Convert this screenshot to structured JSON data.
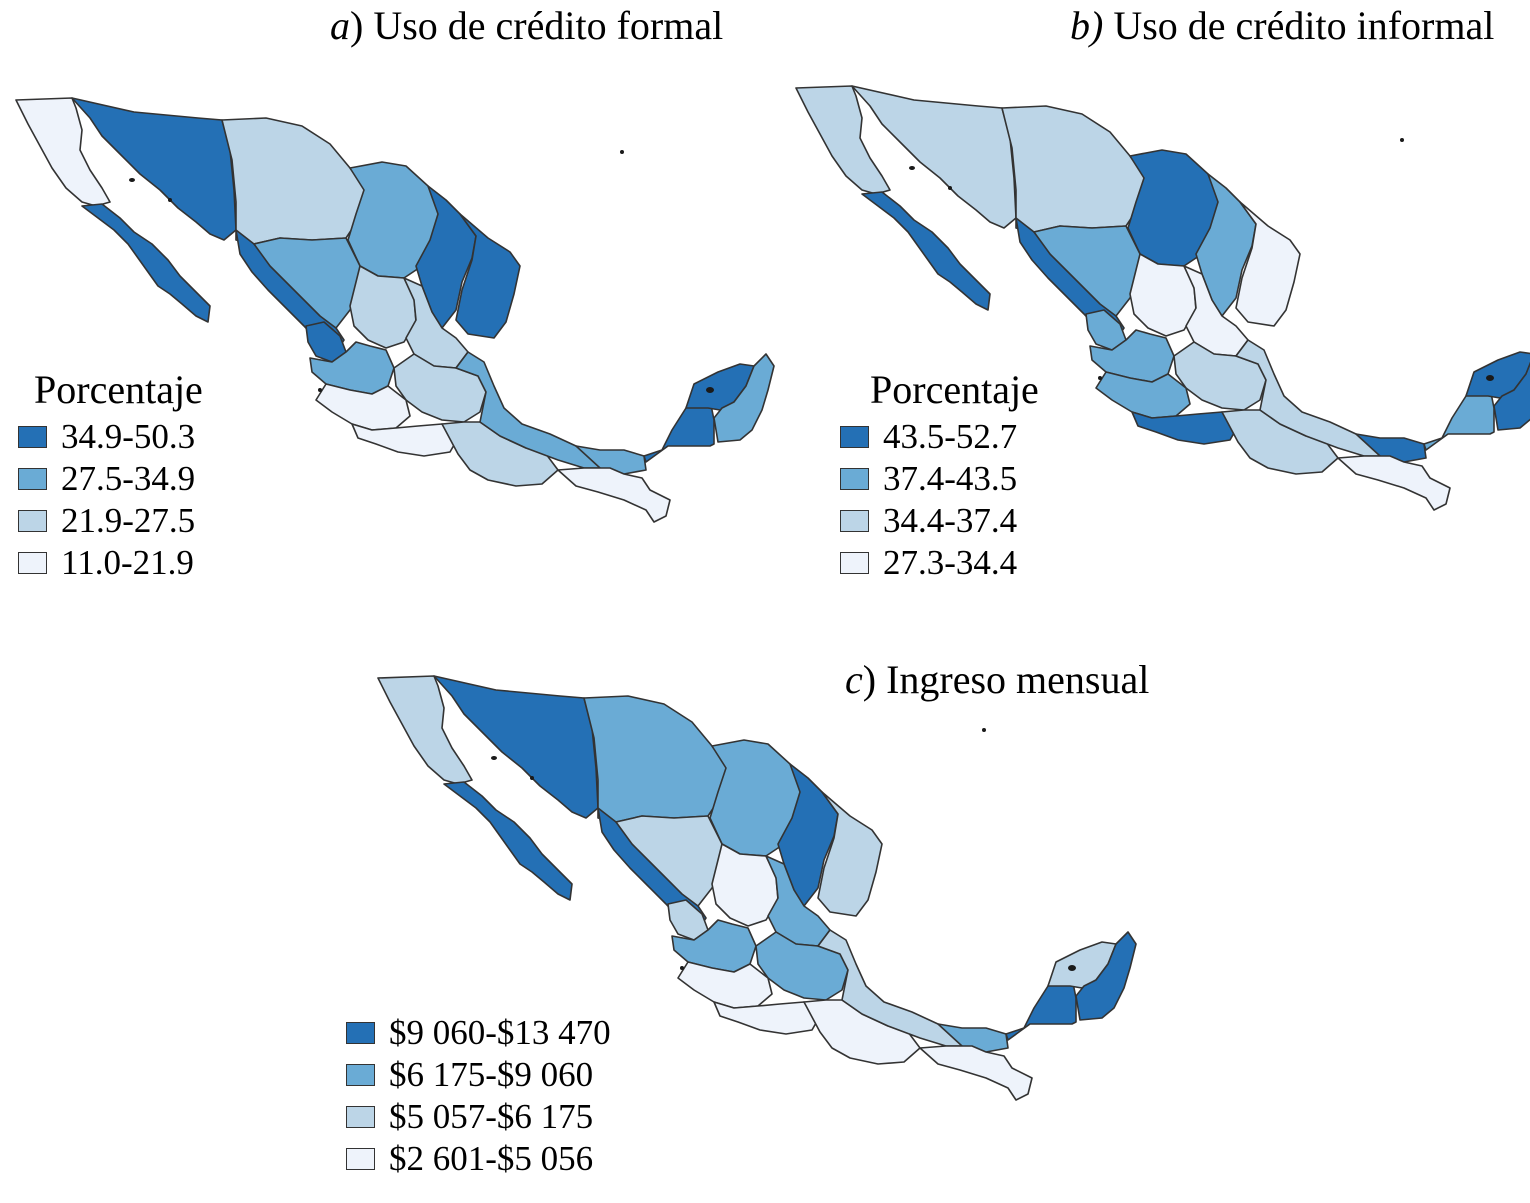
{
  "panels": [
    {
      "id": "a",
      "tag": "a",
      "title": ") Uso de crédito formal",
      "legend_title": "Porcentaje",
      "legend": [
        {
          "label": "34.9-50.3",
          "color": "#2470b5"
        },
        {
          "label": "27.5-34.9",
          "color": "#6aabd5"
        },
        {
          "label": "21.9-27.5",
          "color": "#bcd5e7"
        },
        {
          "label": "11.0-21.9",
          "color": "#eef3fb"
        }
      ]
    },
    {
      "id": "b",
      "tag": "b)",
      "title": " Uso de crédito informal",
      "legend_title": "Porcentaje",
      "legend": [
        {
          "label": "43.5-52.7",
          "color": "#2470b5"
        },
        {
          "label": "37.4-43.5",
          "color": "#6aabd5"
        },
        {
          "label": "34.4-37.4",
          "color": "#bcd5e7"
        },
        {
          "label": "27.3-34.4",
          "color": "#eef3fb"
        }
      ]
    },
    {
      "id": "c",
      "tag": "c",
      "title": ") Ingreso mensual",
      "legend_title": "",
      "legend": [
        {
          "label": "$9 060-$13 470",
          "color": "#2470b5"
        },
        {
          "label": "$6 175-$9 060",
          "color": "#6aabd5"
        },
        {
          "label": "$5 057-$6 175",
          "color": "#bcd5e7"
        },
        {
          "label": "$2 601-$5 056",
          "color": "#eef3fb"
        }
      ]
    }
  ],
  "map_classes": {
    "a": {
      "bcn": 3,
      "bcs": 0,
      "son": 0,
      "chih": 2,
      "coah": 1,
      "nl": 0,
      "tamps": 0,
      "sin": 0,
      "dgo": 1,
      "nay": 0,
      "zac": 2,
      "sl": 2,
      "jal": 1,
      "center": 2,
      "mich": 3,
      "gro": 3,
      "oax": 2,
      "ver": 1,
      "tab": 1,
      "chis": 3,
      "camp": 0,
      "yuc": 0,
      "qroo": 1
    },
    "b": {
      "bcn": 2,
      "bcs": 0,
      "son": 2,
      "chih": 2,
      "coah": 0,
      "nl": 1,
      "tamps": 3,
      "sin": 0,
      "dgo": 1,
      "nay": 1,
      "zac": 3,
      "sl": 3,
      "jal": 1,
      "center": 2,
      "mich": 1,
      "gro": 0,
      "oax": 2,
      "ver": 2,
      "tab": 0,
      "chis": 3,
      "camp": 1,
      "yuc": 0,
      "qroo": 0
    },
    "c": {
      "bcn": 2,
      "bcs": 0,
      "son": 0,
      "chih": 1,
      "coah": 1,
      "nl": 0,
      "tamps": 2,
      "sin": 0,
      "dgo": 2,
      "nay": 2,
      "zac": 3,
      "sl": 1,
      "jal": 1,
      "center": 1,
      "mich": 3,
      "gro": 3,
      "oax": 3,
      "ver": 2,
      "tab": 1,
      "chis": 3,
      "camp": 0,
      "yuc": 2,
      "qroo": 0
    }
  }
}
